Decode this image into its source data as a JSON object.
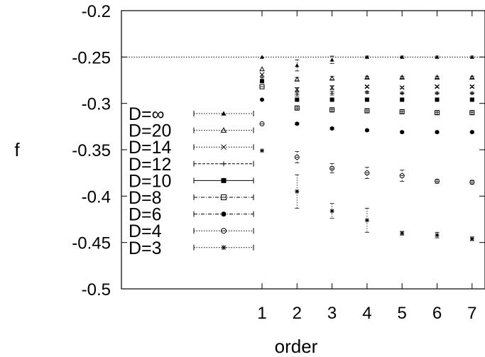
{
  "chart_data": {
    "type": "scatter",
    "xlabel": "order",
    "ylabel": "f",
    "xlim": [
      -3.0,
      7.5
    ],
    "ylim": [
      -0.5,
      -0.2
    ],
    "xticks": [
      "1",
      "2",
      "3",
      "4",
      "5",
      "6",
      "7"
    ],
    "yticks": [
      "-0.2",
      "-0.25",
      "-0.3",
      "-0.35",
      "-0.4",
      "-0.45",
      "-0.5"
    ],
    "reference_line": {
      "y": -0.25
    },
    "legend_position": "left",
    "grid": false,
    "series": [
      {
        "name": "D=∞",
        "marker": "filled-triangle",
        "line": "dotted",
        "x": [
          1,
          2,
          3,
          4,
          5,
          6,
          7
        ],
        "y": [
          -0.25,
          -0.259,
          -0.253,
          -0.25,
          -0.25,
          -0.25,
          -0.25
        ],
        "err": [
          0,
          0.006,
          0.004,
          0.001,
          0.001,
          0.001,
          0.001
        ]
      },
      {
        "name": "D=20",
        "marker": "open-triangle",
        "line": "dotted",
        "x": [
          1,
          2,
          3,
          4,
          5,
          6,
          7
        ],
        "y": [
          -0.263,
          -0.274,
          -0.273,
          -0.272,
          -0.272,
          -0.272,
          -0.272
        ],
        "err": [
          0,
          0.002,
          0.002,
          0.001,
          0.001,
          0.001,
          0.001
        ]
      },
      {
        "name": "D=14",
        "marker": "x",
        "line": "dotted",
        "x": [
          1,
          2,
          3,
          4,
          5,
          6,
          7
        ],
        "y": [
          -0.269,
          -0.285,
          -0.283,
          -0.282,
          -0.283,
          -0.282,
          -0.282
        ],
        "err": [
          0,
          0.002,
          0.002,
          0.001,
          0.001,
          0.001,
          0.001
        ]
      },
      {
        "name": "D=12",
        "marker": "plus",
        "line": "dashed",
        "x": [
          1,
          2,
          3,
          4,
          5,
          6,
          7
        ],
        "y": [
          -0.272,
          -0.29,
          -0.289,
          -0.288,
          -0.289,
          -0.289,
          -0.289
        ],
        "err": [
          0,
          0.002,
          0.002,
          0.001,
          0.001,
          0.001,
          0.001
        ]
      },
      {
        "name": "D=10",
        "marker": "filled-square",
        "line": "solid",
        "x": [
          1,
          2,
          3,
          4,
          5,
          6,
          7
        ],
        "y": [
          -0.276,
          -0.296,
          -0.296,
          -0.296,
          -0.296,
          -0.296,
          -0.296
        ],
        "err": [
          0,
          0.001,
          0.001,
          0.001,
          0.001,
          0.001,
          0.001
        ]
      },
      {
        "name": "D=8",
        "marker": "open-square",
        "line": "dash-dot",
        "x": [
          1,
          2,
          3,
          4,
          5,
          6,
          7
        ],
        "y": [
          -0.282,
          -0.305,
          -0.307,
          -0.308,
          -0.309,
          -0.31,
          -0.31
        ],
        "err": [
          0,
          0.002,
          0.002,
          0.002,
          0.002,
          0.002,
          0.002
        ]
      },
      {
        "name": "D=6",
        "marker": "filled-circle",
        "line": "dash-dot",
        "x": [
          1,
          2,
          3,
          4,
          5,
          6,
          7
        ],
        "y": [
          -0.296,
          -0.322,
          -0.327,
          -0.329,
          -0.331,
          -0.331,
          -0.331
        ],
        "err": [
          0,
          0.001,
          0.001,
          0.001,
          0.001,
          0.001,
          0.001
        ]
      },
      {
        "name": "D=4",
        "marker": "open-circle",
        "line": "dotted",
        "x": [
          1,
          2,
          3,
          4,
          5,
          6,
          7
        ],
        "y": [
          -0.322,
          -0.358,
          -0.37,
          -0.375,
          -0.378,
          -0.384,
          -0.385
        ],
        "err": [
          0,
          0.006,
          0.005,
          0.006,
          0.006,
          0.002,
          0.002
        ]
      },
      {
        "name": "D=3",
        "marker": "star",
        "line": "dotted",
        "x": [
          1,
          2,
          3,
          4,
          5,
          6,
          7
        ],
        "y": [
          -0.351,
          -0.395,
          -0.416,
          -0.426,
          -0.44,
          -0.442,
          -0.446
        ],
        "err": [
          0,
          0.018,
          0.008,
          0.013,
          0.002,
          0.003,
          0.002
        ]
      }
    ]
  }
}
